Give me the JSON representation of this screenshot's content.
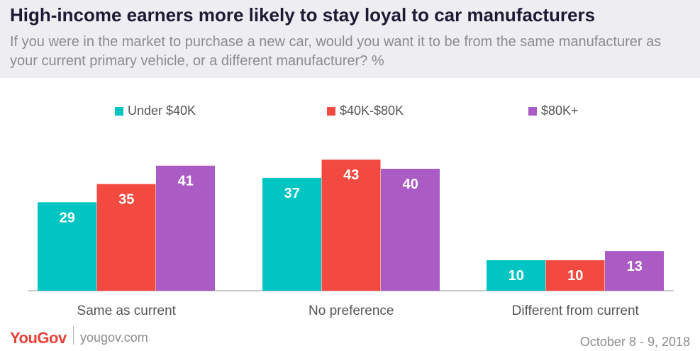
{
  "header": {
    "title": "High-income earners more likely to stay loyal to car manufacturers",
    "subtitle": "If you were in the market to purchase a new car, would you want it to be from the same manufacturer as your current primary vehicle, or a different manufacturer? %"
  },
  "footer": {
    "brand": "YouGov",
    "site": "yougov.com",
    "date": "October 8 - 9, 2018"
  },
  "chart_data": {
    "type": "bar",
    "title": "High-income earners more likely to stay loyal to car manufacturers",
    "subtitle": "If you were in the market to purchase a new car, would you want it to be from the same manufacturer as your current primary vehicle, or a different manufacturer? %",
    "categories": [
      "Same as current",
      "No preference",
      "Different from current"
    ],
    "series": [
      {
        "name": "Under $40K",
        "color": "#00c5c2",
        "values": [
          29,
          37,
          10
        ]
      },
      {
        "name": "$40K-$80K",
        "color": "#f24a40",
        "values": [
          35,
          43,
          10
        ]
      },
      {
        "name": "$80K+",
        "color": "#ab5cc4",
        "values": [
          41,
          40,
          13
        ]
      }
    ],
    "ylim": [
      0,
      50
    ],
    "grid": false,
    "legend": "top",
    "data_labels": true
  }
}
